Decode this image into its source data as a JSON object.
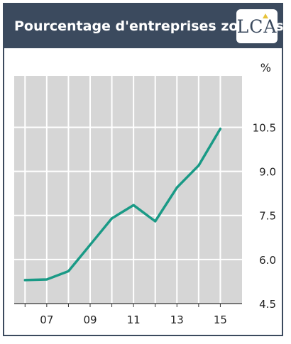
{
  "header": {
    "title": "Pourcentage d'entreprises zombies",
    "logo_text": "LCA"
  },
  "colors": {
    "header_bg": "#3b4a5e",
    "plot_bg": "#d6d6d6",
    "grid": "#ffffff",
    "line": "#1a9a86",
    "logo_accent": "#e7c33a"
  },
  "chart_data": {
    "type": "line",
    "title": "Pourcentage d'entreprises zombies",
    "unit_label": "%",
    "x": [
      2006,
      2007,
      2008,
      2009,
      2010,
      2011,
      2012,
      2013,
      2014,
      2015
    ],
    "x_tick_values": [
      2007,
      2009,
      2011,
      2013,
      2015
    ],
    "x_tick_labels": [
      "07",
      "09",
      "11",
      "13",
      "15"
    ],
    "xlim": [
      2005.5,
      2016
    ],
    "y_tick_values": [
      4.5,
      6.0,
      7.5,
      9.0,
      10.5
    ],
    "y_tick_labels": [
      "4.5",
      "6.0",
      "7.5",
      "9.0",
      "10.5"
    ],
    "ylim": [
      4.5,
      12.25
    ],
    "grid": true,
    "series": [
      {
        "values": [
          5.3,
          5.32,
          5.6,
          6.5,
          7.4,
          7.85,
          7.3,
          8.45,
          9.2,
          10.45
        ]
      }
    ]
  }
}
